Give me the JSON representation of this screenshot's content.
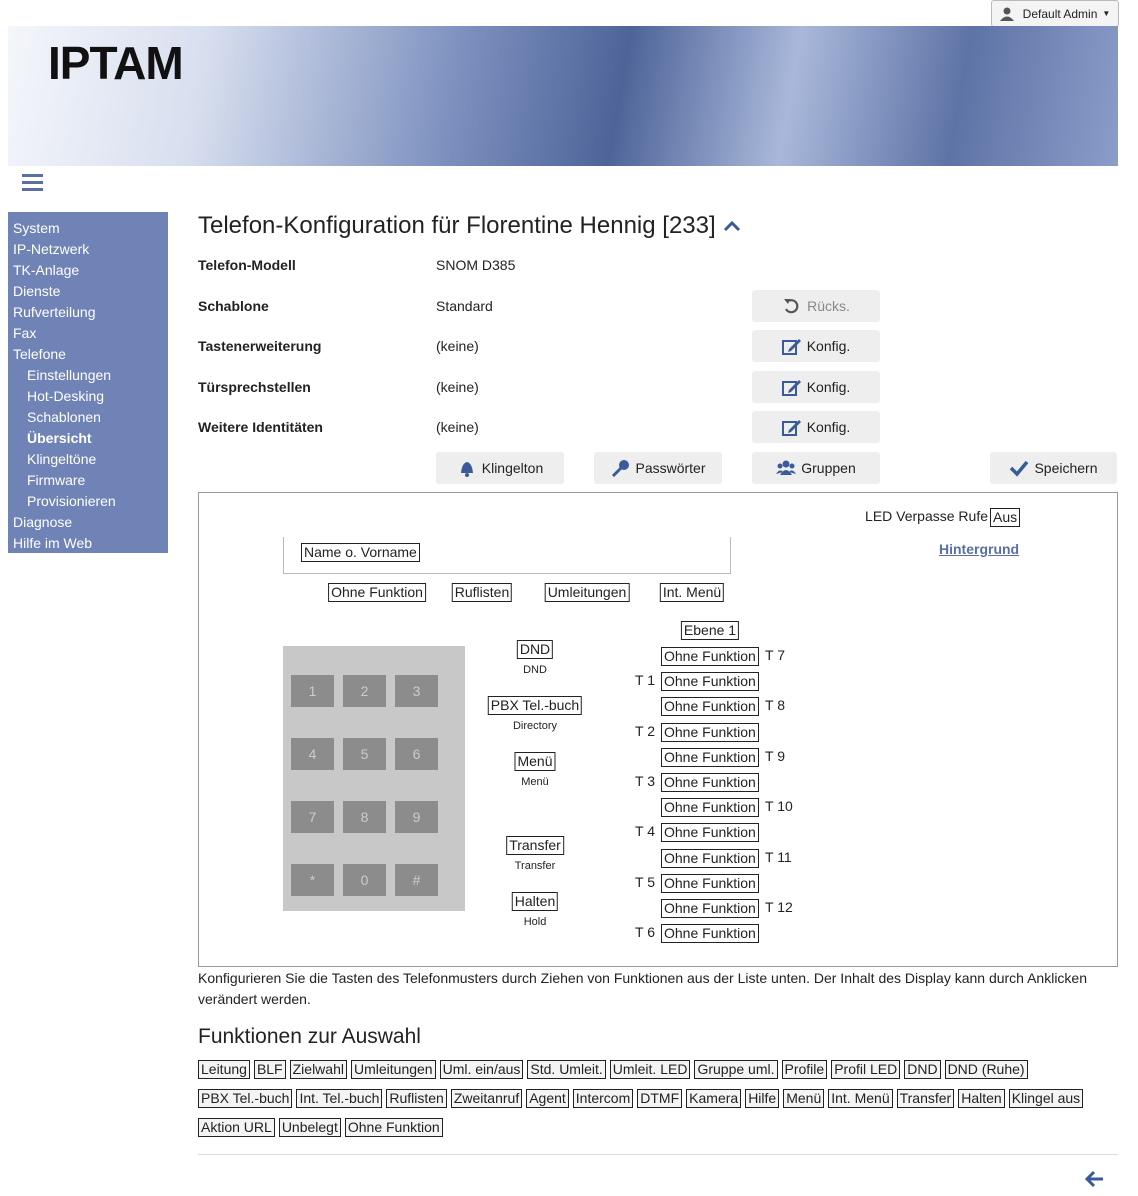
{
  "user_menu": "Default Admin",
  "header": {
    "logo": "IPTAM"
  },
  "nav": [
    {
      "label": "System",
      "level": 0
    },
    {
      "label": "IP-Netzwerk",
      "level": 0
    },
    {
      "label": "TK-Anlage",
      "level": 0
    },
    {
      "label": "Dienste",
      "level": 0
    },
    {
      "label": "Rufverteilung",
      "level": 0
    },
    {
      "label": "Fax",
      "level": 0
    },
    {
      "label": "Telefone",
      "level": 0
    },
    {
      "label": "Einstellungen",
      "level": 1
    },
    {
      "label": "Hot-Desking",
      "level": 1
    },
    {
      "label": "Schablonen",
      "level": 1
    },
    {
      "label": "Übersicht",
      "level": 1,
      "active": true
    },
    {
      "label": "Klingeltöne",
      "level": 1
    },
    {
      "label": "Firmware",
      "level": 1
    },
    {
      "label": "Provisionieren",
      "level": 1
    },
    {
      "label": "Diagnose",
      "level": 0
    },
    {
      "label": "Hilfe im Web",
      "level": 0
    }
  ],
  "title": "Telefon-Konfiguration für Florentine Hennig [233]",
  "fields": [
    {
      "label": "Telefon-Modell",
      "value": "SNOM D385"
    },
    {
      "label": "Schablone",
      "value": "Standard",
      "button": "Rücks."
    },
    {
      "label": "Tastenerweiterung",
      "value": "(keine)",
      "button": "Konfig."
    },
    {
      "label": "Türsprechstellen",
      "value": "(keine)",
      "button": "Konfig."
    },
    {
      "label": "Weitere Identitäten",
      "value": "(keine)",
      "button": "Konfig."
    }
  ],
  "actions": [
    "Klingelton",
    "Passwörter",
    "Gruppen",
    "Speichern"
  ],
  "phone": {
    "led_label": "LED Verpasse Rufe",
    "led_value": "Aus",
    "background_link": "Hintergrund",
    "display": "Name o. Vorname",
    "softkeys": [
      "Ohne Funktion",
      "Ruflisten",
      "Umleitungen",
      "Int. Menü"
    ],
    "keypad": [
      "1",
      "2",
      "3",
      "4",
      "5",
      "6",
      "7",
      "8",
      "9",
      "*",
      "0",
      "#"
    ],
    "function_keys": [
      {
        "label": "DND",
        "caption": "DND"
      },
      {
        "label": "PBX Tel.-buch",
        "caption": "Directory"
      },
      {
        "label": "Menü",
        "caption": "Menü"
      },
      {
        "label": "Transfer",
        "caption": "Transfer"
      },
      {
        "label": "Halten",
        "caption": "Hold"
      }
    ],
    "level": "Ebene 1",
    "right_keys": [
      {
        "name": "T 7",
        "function": "Ohne Funktion"
      },
      {
        "name": "T 8",
        "function": "Ohne Funktion"
      },
      {
        "name": "T 9",
        "function": "Ohne Funktion"
      },
      {
        "name": "T 10",
        "function": "Ohne Funktion"
      },
      {
        "name": "T 11",
        "function": "Ohne Funktion"
      },
      {
        "name": "T 12",
        "function": "Ohne Funktion"
      }
    ],
    "left_keys": [
      {
        "name": "T 1",
        "function": "Ohne Funktion"
      },
      {
        "name": "T 2",
        "function": "Ohne Funktion"
      },
      {
        "name": "T 3",
        "function": "Ohne Funktion"
      },
      {
        "name": "T 4",
        "function": "Ohne Funktion"
      },
      {
        "name": "T 5",
        "function": "Ohne Funktion"
      },
      {
        "name": "T 6",
        "function": "Ohne Funktion"
      }
    ]
  },
  "help_text": "Konfigurieren Sie die Tasten des Telefonmusters durch Ziehen von Funktionen aus der Liste unten. Der Inhalt des Display kann durch Anklicken verändert werden.",
  "functions_title": "Funktionen zur Auswahl",
  "functions": [
    "Leitung",
    "BLF",
    "Zielwahl",
    "Umleitungen",
    "Uml. ein/aus",
    "Std. Umleit.",
    "Umleit. LED",
    "Gruppe uml.",
    "Profile",
    "Profil LED",
    "DND",
    "DND (Ruhe)",
    "PBX Tel.-buch",
    "Int. Tel.-buch",
    "Ruflisten",
    "Zweitanruf",
    "Agent",
    "Intercom",
    "DTMF",
    "Kamera",
    "Hilfe",
    "Menü",
    "Int. Menü",
    "Transfer",
    "Halten",
    "Klingel aus",
    "Aktion URL",
    "Unbelegt",
    "Ohne Funktion"
  ]
}
